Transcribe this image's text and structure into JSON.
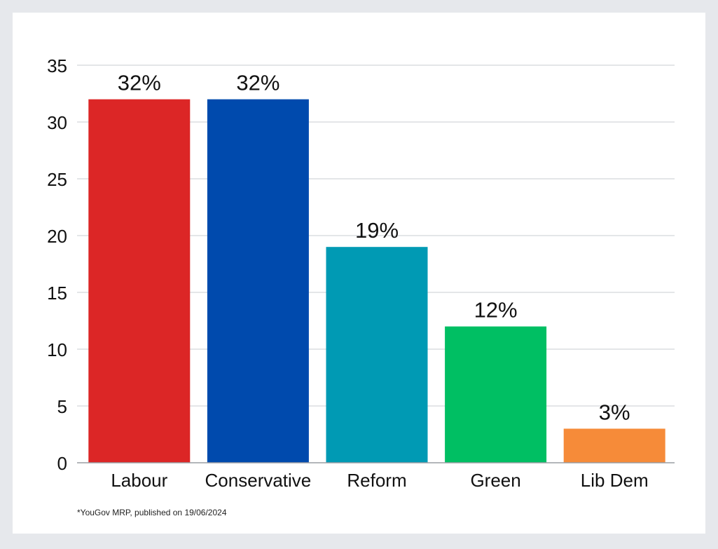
{
  "chart_data": {
    "type": "bar",
    "categories": [
      "Labour",
      "Conservative",
      "Reform",
      "Green",
      "Lib Dem"
    ],
    "values": [
      32,
      32,
      19,
      12,
      3
    ],
    "data_labels": [
      "32%",
      "32%",
      "19%",
      "12%",
      "3%"
    ],
    "colors": [
      "#dc2626",
      "#004aad",
      "#009ab4",
      "#00bf63",
      "#f68b39"
    ],
    "ylim": [
      0,
      35
    ],
    "yticks": [
      0,
      5,
      10,
      15,
      20,
      25,
      30,
      35
    ],
    "ytick_labels": [
      "0",
      "5",
      "10",
      "15",
      "20",
      "25",
      "30",
      "35"
    ],
    "grid": true,
    "title": "",
    "xlabel": "",
    "ylabel": ""
  },
  "footnote": "*YouGov MRP, published on 19/06/2024"
}
